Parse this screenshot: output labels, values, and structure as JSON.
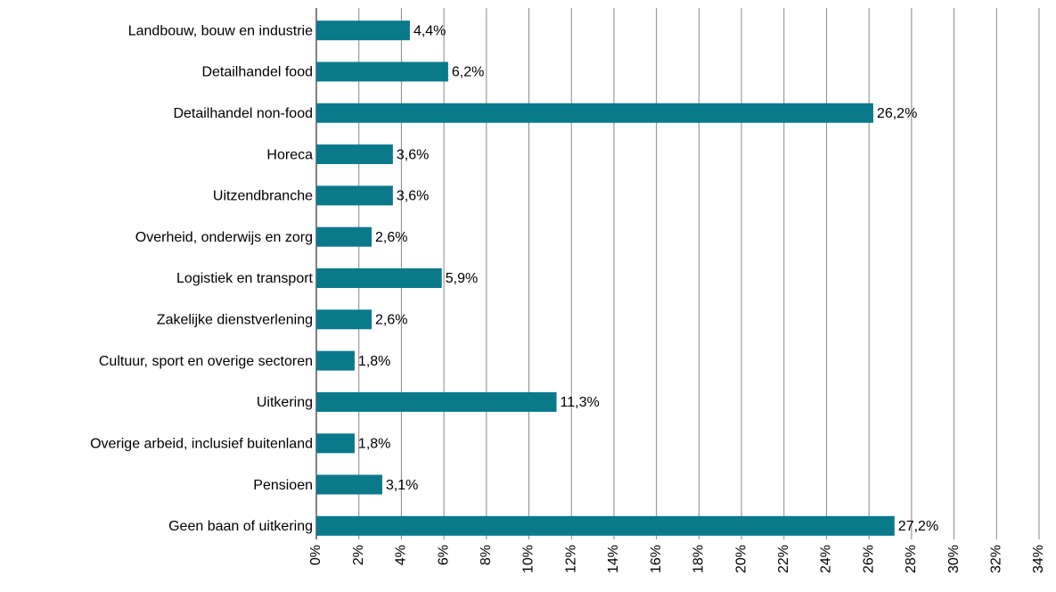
{
  "chart_data": {
    "type": "barh",
    "categories": [
      "Landbouw, bouw en industrie",
      "Detailhandel food",
      "Detailhandel non-food",
      "Horeca",
      "Uitzendbranche",
      "Overheid, onderwijs en zorg",
      "Logistiek en transport",
      "Zakelijke dienstverlening",
      "Cultuur, sport en overige sectoren",
      "Uitkering",
      "Overige arbeid, inclusief buitenland",
      "Pensioen",
      "Geen baan of uitkering"
    ],
    "values": [
      4.4,
      6.2,
      26.2,
      3.6,
      3.6,
      2.6,
      5.9,
      2.6,
      1.8,
      11.3,
      1.8,
      3.1,
      27.2
    ],
    "value_labels": [
      "4,4%",
      "6,2%",
      "26,2%",
      "3,6%",
      "3,6%",
      "2,6%",
      "5,9%",
      "2,6%",
      "1,8%",
      "11,3%",
      "1,8%",
      "3,1%",
      "27,2%"
    ],
    "color": "#0a7a8a",
    "xlim": [
      0,
      34
    ],
    "xticks": [
      {
        "value": 0,
        "label": "0%"
      },
      {
        "value": 2,
        "label": "2%"
      },
      {
        "value": 4,
        "label": "4%"
      },
      {
        "value": 6,
        "label": "6%"
      },
      {
        "value": 8,
        "label": "8%"
      },
      {
        "value": 10,
        "label": "10%"
      },
      {
        "value": 12,
        "label": "12%"
      },
      {
        "value": 14,
        "label": "14%"
      },
      {
        "value": 16,
        "label": "16%"
      },
      {
        "value": 18,
        "label": "18%"
      },
      {
        "value": 20,
        "label": "20%"
      },
      {
        "value": 22,
        "label": "22%"
      },
      {
        "value": 24,
        "label": "24%"
      },
      {
        "value": 26,
        "label": "26%"
      },
      {
        "value": 28,
        "label": "28%"
      },
      {
        "value": 30,
        "label": "30%"
      },
      {
        "value": 32,
        "label": "32%"
      },
      {
        "value": 34,
        "label": "34%"
      }
    ],
    "grid": true
  }
}
